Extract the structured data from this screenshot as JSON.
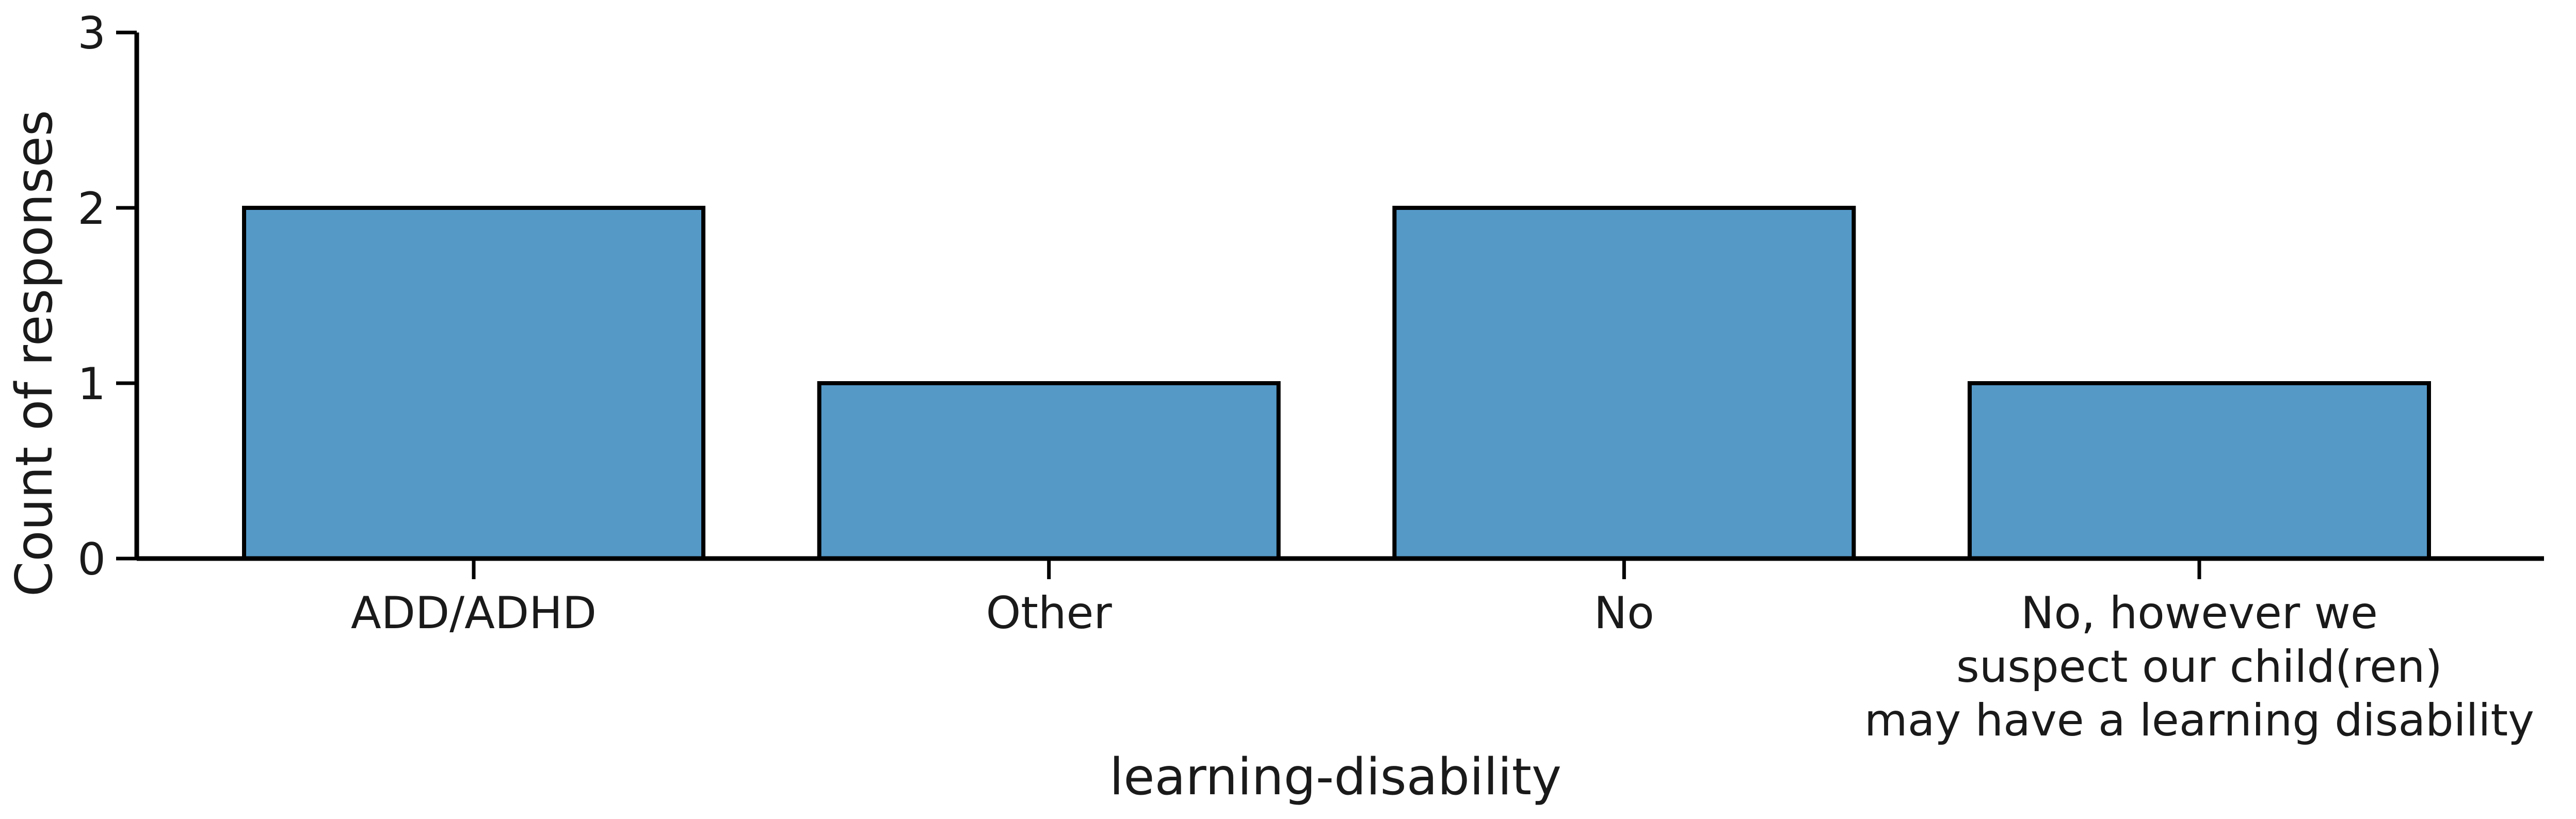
{
  "chart_data": {
    "type": "bar",
    "categories": [
      [
        "ADD/ADHD"
      ],
      [
        "Other"
      ],
      [
        "No"
      ],
      [
        "No, however we",
        "suspect our child(ren)",
        "may have a learning disability"
      ]
    ],
    "values": [
      2,
      1,
      2,
      1
    ],
    "xlabel": "learning-disability",
    "ylabel": "Count of responses",
    "ylim": [
      0,
      3
    ],
    "yticks": [
      0,
      1,
      2,
      3
    ],
    "bar_color": "#5599c7",
    "edge_color": "#000000",
    "grid": false,
    "legend": "none"
  }
}
